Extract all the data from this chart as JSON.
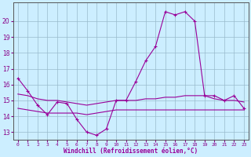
{
  "xlabel": "Windchill (Refroidissement éolien,°C)",
  "x": [
    0,
    1,
    2,
    3,
    4,
    5,
    6,
    7,
    8,
    9,
    10,
    11,
    12,
    13,
    14,
    15,
    16,
    17,
    18,
    19,
    20,
    21,
    22,
    23
  ],
  "y_main": [
    16.4,
    15.6,
    14.7,
    14.1,
    14.9,
    14.8,
    13.8,
    13.0,
    12.8,
    13.2,
    15.0,
    15.0,
    16.2,
    17.5,
    18.4,
    20.6,
    20.4,
    20.6,
    20.0,
    15.3,
    15.3,
    15.0,
    15.3,
    14.5
  ],
  "y_flat1": [
    15.4,
    15.3,
    15.1,
    15.0,
    15.0,
    14.9,
    14.8,
    14.7,
    14.8,
    14.9,
    15.0,
    15.0,
    15.0,
    15.1,
    15.1,
    15.2,
    15.2,
    15.3,
    15.3,
    15.3,
    15.1,
    15.0,
    15.0,
    14.9
  ],
  "y_flat2": [
    14.5,
    14.4,
    14.3,
    14.2,
    14.2,
    14.2,
    14.2,
    14.1,
    14.2,
    14.3,
    14.4,
    14.4,
    14.4,
    14.4,
    14.4,
    14.4,
    14.4,
    14.4,
    14.4,
    14.4,
    14.4,
    14.4,
    14.4,
    14.4
  ],
  "line_color": "#990099",
  "bg_color": "#cceeff",
  "grid_color": "#99bbcc",
  "ylim": [
    12.5,
    21.2
  ],
  "xlim": [
    -0.5,
    23.5
  ],
  "yticks": [
    13,
    14,
    15,
    16,
    17,
    18,
    19,
    20
  ],
  "xtick_labels": [
    "0",
    "1",
    "2",
    "3",
    "4",
    "5",
    "6",
    "7",
    "8",
    "9",
    "10",
    "11",
    "12",
    "13",
    "14",
    "15",
    "16",
    "17",
    "18",
    "19",
    "20",
    "21",
    "22",
    "23"
  ],
  "marker": "+"
}
